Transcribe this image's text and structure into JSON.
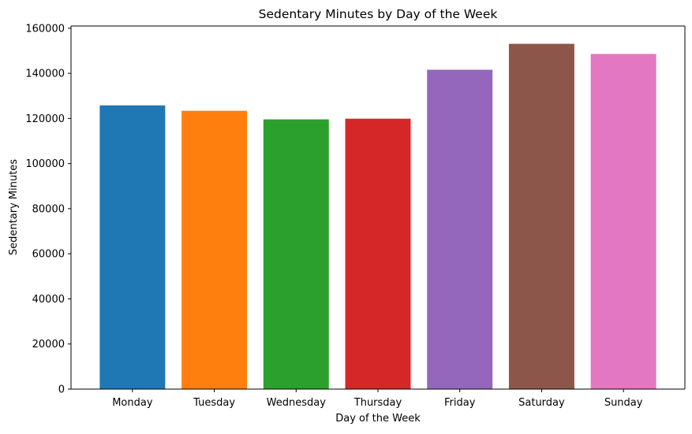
{
  "chart_data": {
    "type": "bar",
    "title": "Sedentary Minutes by Day of the Week",
    "xlabel": "Day of the Week",
    "ylabel": "Sedentary Minutes",
    "categories": [
      "Monday",
      "Tuesday",
      "Wednesday",
      "Thursday",
      "Friday",
      "Saturday",
      "Sunday"
    ],
    "values": [
      125800,
      123400,
      119600,
      119900,
      141600,
      153100,
      148600
    ],
    "colors": [
      "#1f77b4",
      "#ff7f0e",
      "#2ca02c",
      "#d62728",
      "#9467bd",
      "#8c564b",
      "#e377c2"
    ],
    "ylim": [
      0,
      161000
    ],
    "yticks": [
      0,
      20000,
      40000,
      60000,
      80000,
      100000,
      120000,
      140000,
      160000
    ],
    "grid": false,
    "legend": "none"
  }
}
